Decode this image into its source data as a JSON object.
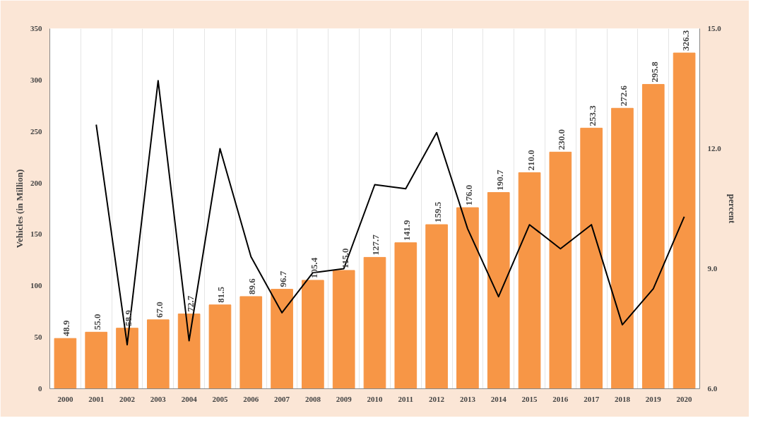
{
  "chart_data": {
    "type": "bar",
    "ylabel": "Vehicles (in Million)",
    "y2label": "percent",
    "categories": [
      "2000",
      "2001",
      "2002",
      "2003",
      "2004",
      "2005",
      "2006",
      "2007",
      "2008",
      "2009",
      "2010",
      "2011",
      "2012",
      "2013",
      "2014",
      "2015",
      "2016",
      "2017",
      "2018",
      "2019",
      "2020"
    ],
    "series": [
      {
        "color": "#f79646",
        "values": [
          48.9,
          55.0,
          58.9,
          67.0,
          72.7,
          81.5,
          89.6,
          96.7,
          105.4,
          115.0,
          127.7,
          141.9,
          159.5,
          176.0,
          190.7,
          210.0,
          230.0,
          253.3,
          272.6,
          295.8,
          326.3
        ],
        "value_labels": [
          "48.9",
          "55.0",
          "58.9",
          "67.0",
          "72.7",
          "81.5",
          "89.6",
          "96.7",
          "105.4",
          "115.0",
          "127.7",
          "141.9",
          "159.5",
          "176.0",
          "190.7",
          "210.0",
          "230.0",
          "253.3",
          "272.6",
          "295.8",
          "326.3"
        ]
      },
      {
        "type": "line",
        "axis": "y2",
        "color": "#000000",
        "values": [
          null,
          12.6,
          7.1,
          13.7,
          7.2,
          12.0,
          9.3,
          7.9,
          8.9,
          9.0,
          11.1,
          11.0,
          12.4,
          10.0,
          8.3,
          10.1,
          9.5,
          10.1,
          7.6,
          8.5,
          10.3
        ]
      }
    ],
    "ylim": [
      0,
      350
    ],
    "yticks": [
      0,
      50,
      100,
      150,
      200,
      250,
      300,
      350
    ],
    "y2lim": [
      6.0,
      15.0
    ],
    "y2ticks": [
      {
        "value": 6,
        "label": "6.0"
      },
      {
        "value": 9,
        "label": "9.0"
      },
      {
        "value": 12,
        "label": "12.0"
      },
      {
        "value": 15,
        "label": "15.0"
      }
    ],
    "grid": "x",
    "marker": "none",
    "line_style": "solid"
  }
}
